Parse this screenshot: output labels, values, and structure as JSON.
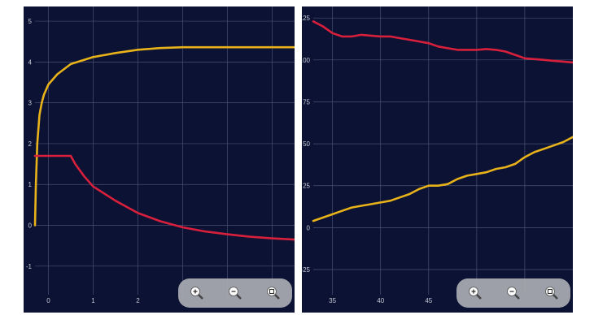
{
  "chart_data": [
    {
      "type": "line",
      "title": "",
      "xlabel": "",
      "ylabel": "",
      "xlim": [
        -0.3,
        5.5
      ],
      "ylim": [
        -1.7,
        5.2
      ],
      "x_ticks": [
        "0",
        "1",
        "2"
      ],
      "x_tick_values": [
        0,
        1,
        2
      ],
      "y_ticks": [
        "5",
        "4",
        "3",
        "2",
        "1",
        "0",
        "-1"
      ],
      "y_tick_values": [
        5,
        4,
        3,
        2,
        1,
        0,
        -1
      ],
      "grid": true,
      "series": [
        {
          "color": "#e8b21a",
          "x": [
            -0.3,
            -0.28,
            -0.25,
            -0.2,
            -0.15,
            -0.1,
            0,
            0.2,
            0.5,
            1,
            1.5,
            2,
            2.5,
            3,
            3.5,
            4,
            4.5,
            5,
            5.5
          ],
          "y": [
            0.0,
            1.0,
            2.0,
            2.7,
            3.0,
            3.2,
            3.45,
            3.7,
            3.95,
            4.12,
            4.22,
            4.3,
            4.34,
            4.36,
            4.36,
            4.36,
            4.36,
            4.36,
            4.36
          ]
        },
        {
          "color": "#d8203c",
          "x": [
            -0.3,
            0.5,
            0.6,
            0.8,
            1,
            1.5,
            2,
            2.5,
            3,
            3.5,
            4,
            4.5,
            5,
            5.5
          ],
          "y": [
            1.7,
            1.7,
            1.5,
            1.2,
            0.95,
            0.6,
            0.3,
            0.1,
            -0.05,
            -0.15,
            -0.22,
            -0.28,
            -0.32,
            -0.35
          ]
        }
      ]
    },
    {
      "type": "line",
      "title": "",
      "xlabel": "",
      "ylabel": "",
      "xlim": [
        33,
        60
      ],
      "ylim": [
        -40,
        128
      ],
      "x_ticks": [
        "35",
        "40",
        "45"
      ],
      "x_tick_values": [
        35,
        40,
        45
      ],
      "y_ticks": [
        "125",
        "100",
        "75",
        "50",
        "25",
        "0",
        "-25"
      ],
      "y_tick_values": [
        125,
        100,
        75,
        50,
        25,
        0,
        -25
      ],
      "grid": true,
      "series": [
        {
          "color": "#d8203c",
          "x": [
            33,
            34,
            35,
            36,
            37,
            38,
            39,
            40,
            41,
            42,
            43,
            44,
            45,
            46,
            47,
            48,
            49,
            50,
            51,
            52,
            53,
            54,
            55,
            56,
            57,
            58,
            59,
            60
          ],
          "y": [
            123,
            120,
            116,
            114,
            114,
            115,
            114.5,
            114,
            114,
            113,
            112,
            111,
            110,
            108,
            107,
            106,
            106,
            106,
            106.5,
            106,
            105,
            103,
            101,
            100.5,
            100,
            99.5,
            99,
            98.5
          ]
        },
        {
          "color": "#e8b21a",
          "x": [
            33,
            34,
            35,
            36,
            37,
            38,
            39,
            40,
            41,
            42,
            43,
            44,
            45,
            46,
            47,
            48,
            49,
            50,
            51,
            52,
            53,
            54,
            55,
            56,
            57,
            58,
            59,
            60
          ],
          "y": [
            4,
            6,
            8,
            10,
            12,
            13,
            14,
            15,
            16,
            18,
            20,
            23,
            25,
            25,
            26,
            29,
            31,
            32,
            33,
            35,
            36,
            38,
            42,
            45,
            47,
            49,
            51,
            54
          ]
        }
      ]
    }
  ],
  "controls": {
    "zoom_icons": [
      "zoom-in-icon",
      "zoom-out-icon",
      "zoom-reset-icon"
    ]
  }
}
